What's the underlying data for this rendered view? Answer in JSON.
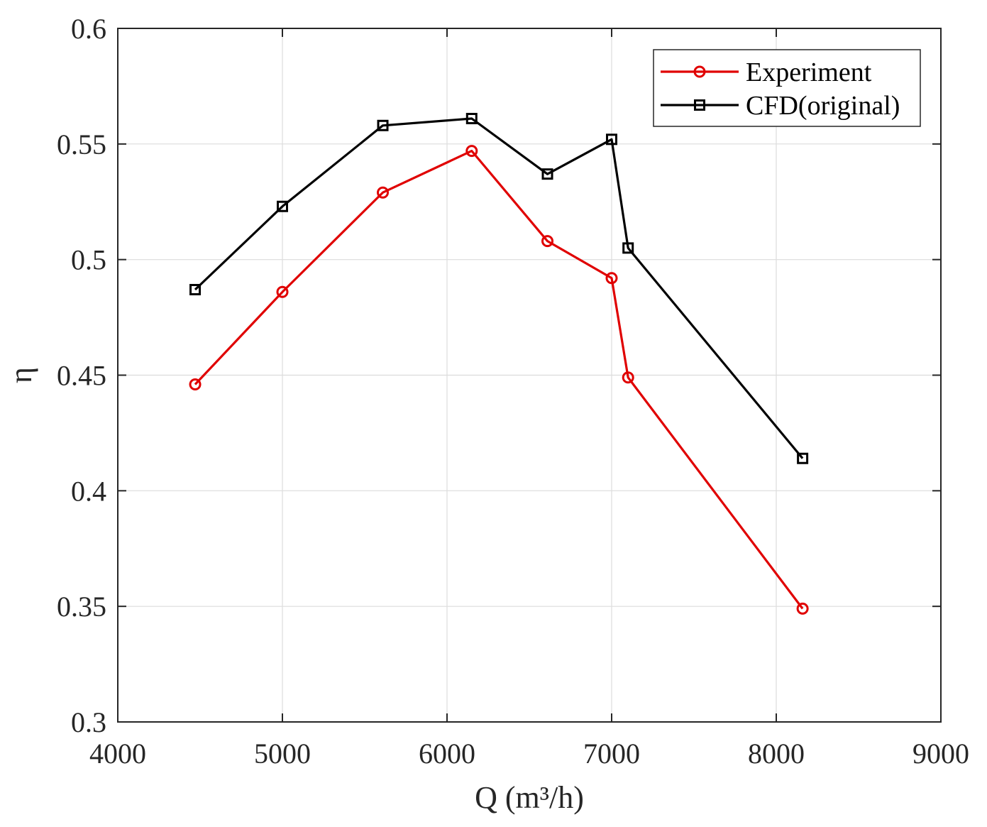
{
  "chart_data": {
    "type": "line",
    "title": "",
    "xlabel": "Q (m³/h)",
    "ylabel": "η",
    "xlim": [
      4000,
      9000
    ],
    "ylim": [
      0.3,
      0.6
    ],
    "xticks": [
      4000,
      5000,
      6000,
      7000,
      8000,
      9000
    ],
    "yticks": [
      0.3,
      0.35,
      0.4,
      0.45,
      0.5,
      0.55,
      0.6
    ],
    "xtick_labels": [
      "4000",
      "5000",
      "6000",
      "7000",
      "8000",
      "9000"
    ],
    "ytick_labels": [
      "0.3",
      "0.35",
      "0.4",
      "0.45",
      "0.5",
      "0.55",
      "0.6"
    ],
    "grid": true,
    "legend_position": "top-right",
    "series": [
      {
        "name": "Experiment",
        "color": "#e00000",
        "marker": "circle",
        "x": [
          4470,
          5000,
          5610,
          6150,
          6610,
          7000,
          7100,
          8160
        ],
        "y": [
          0.446,
          0.486,
          0.529,
          0.547,
          0.508,
          0.492,
          0.449,
          0.349
        ]
      },
      {
        "name": "CFD(original)",
        "color": "#000000",
        "marker": "square",
        "x": [
          4470,
          5000,
          5610,
          6150,
          6610,
          7000,
          7100,
          8160
        ],
        "y": [
          0.487,
          0.523,
          0.558,
          0.561,
          0.537,
          0.552,
          0.505,
          0.414
        ]
      }
    ]
  }
}
